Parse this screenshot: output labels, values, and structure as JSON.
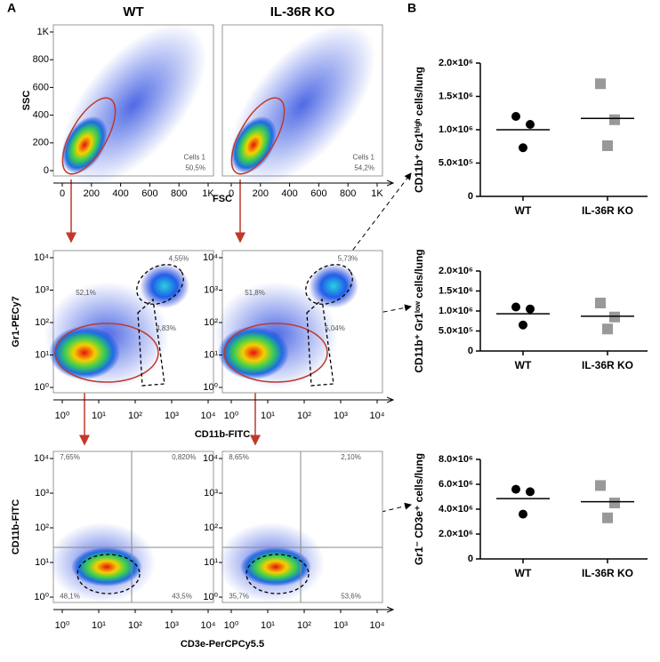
{
  "panel_labels": [
    "A",
    "B"
  ],
  "flow": {
    "columns": [
      "WT",
      "IL-36R KO"
    ],
    "rows": [
      {
        "x_label": "FSC",
        "y_label": "SSC",
        "log": false,
        "xticks": [
          0,
          200,
          400,
          600,
          800,
          {
            "value": 1000,
            "label": "1K"
          }
        ],
        "yticks": [
          0,
          200,
          400,
          600,
          800,
          {
            "value": 1000,
            "label": "1K"
          }
        ],
        "gates": [
          [
            "Cells 1",
            "50,5%"
          ],
          [
            "Cells 1",
            "54,2%"
          ]
        ]
      },
      {
        "x_label": "CD11b-FITC",
        "y_label": "Gr1-PECy7",
        "log": true,
        "xticks": [
          {
            "value": 1,
            "label": "10⁰"
          },
          {
            "value": 10,
            "label": "10¹"
          },
          {
            "value": 100,
            "label": "10²"
          },
          {
            "value": 1000,
            "label": "10³"
          },
          {
            "value": 10000,
            "label": "10⁴"
          }
        ],
        "yticks": [
          {
            "value": 1,
            "label": "10⁰"
          },
          {
            "value": 10,
            "label": "10¹"
          },
          {
            "value": 100,
            "label": "10²"
          },
          {
            "value": 1000,
            "label": "10³"
          },
          {
            "value": 10000,
            "label": "10⁴"
          }
        ],
        "gates": [
          [
            "4,55%",
            "52,1%",
            "4,83%"
          ],
          [
            "5,73%",
            "51,8%",
            "5,04%"
          ]
        ]
      },
      {
        "x_label": "CD3e-PerCPCy5.5",
        "y_label": "CD11b-FITC",
        "log": true,
        "xticks": [
          {
            "value": 1,
            "label": "10⁰"
          },
          {
            "value": 10,
            "label": "10¹"
          },
          {
            "value": 100,
            "label": "10²"
          },
          {
            "value": 1000,
            "label": "10³"
          },
          {
            "value": 10000,
            "label": "10⁴"
          }
        ],
        "yticks": [
          {
            "value": 1,
            "label": "10⁰"
          },
          {
            "value": 10,
            "label": "10¹"
          },
          {
            "value": 100,
            "label": "10²"
          },
          {
            "value": 1000,
            "label": "10³"
          },
          {
            "value": 10000,
            "label": "10⁴"
          }
        ],
        "gates": [
          [
            "7,65%",
            "0,820%",
            "48,1%",
            "43,5%"
          ],
          [
            "8,65%",
            "2,10%",
            "35,7%",
            "53,6%"
          ]
        ]
      }
    ]
  },
  "chart_data": [
    {
      "type": "dot",
      "y_label": "CD11b⁺ Gr1ʰⁱᵍʰ cells/lung",
      "categories": [
        "WT",
        "IL-36R KO"
      ],
      "points": [
        [
          1200000,
          1080000,
          730000
        ],
        [
          1690000,
          1150000,
          760000
        ]
      ],
      "means": [
        1000000,
        1170000
      ],
      "colors": [
        "#000000",
        "#999999"
      ],
      "markers": [
        "circle",
        "square"
      ],
      "ylim": [
        0,
        2000000
      ],
      "yticks": [
        0,
        {
          "value": 500000,
          "label": "5.0×10⁵"
        },
        {
          "value": 1000000,
          "label": "1.0×10⁶"
        },
        {
          "value": 1500000,
          "label": "1.5×10⁶"
        },
        {
          "value": 2000000,
          "label": "2.0×10⁶"
        }
      ]
    },
    {
      "type": "dot",
      "y_label": "CD11b⁺ Gr1ˡᵒʷ cells/lung",
      "categories": [
        "WT",
        "IL-36R KO"
      ],
      "points": [
        [
          1100000,
          1050000,
          650000
        ],
        [
          1200000,
          850000,
          550000
        ]
      ],
      "means": [
        930000,
        870000
      ],
      "colors": [
        "#000000",
        "#999999"
      ],
      "markers": [
        "circle",
        "square"
      ],
      "ylim": [
        0,
        2000000
      ],
      "yticks": [
        0,
        {
          "value": 500000,
          "label": "5.0×10⁵"
        },
        {
          "value": 1000000,
          "label": "1.0×10⁶"
        },
        {
          "value": 1500000,
          "label": "1.5×10⁶"
        },
        {
          "value": 2000000,
          "label": "2.0×10⁶"
        }
      ]
    },
    {
      "type": "dot",
      "y_label": "Gr1⁻ CD3e⁺ cells/lung",
      "categories": [
        "WT",
        "IL-36R KO"
      ],
      "points": [
        [
          5600000,
          5400000,
          3600000
        ],
        [
          5900000,
          4500000,
          3300000
        ]
      ],
      "means": [
        4850000,
        4600000
      ],
      "colors": [
        "#000000",
        "#999999"
      ],
      "markers": [
        "circle",
        "square"
      ],
      "ylim": [
        0,
        8000000
      ],
      "yticks": [
        0,
        {
          "value": 2000000,
          "label": "2.0×10⁶"
        },
        {
          "value": 4000000,
          "label": "4.0×10⁶"
        },
        {
          "value": 6000000,
          "label": "6.0×10⁶"
        },
        {
          "value": 8000000,
          "label": "8.0×10⁶"
        }
      ]
    }
  ]
}
